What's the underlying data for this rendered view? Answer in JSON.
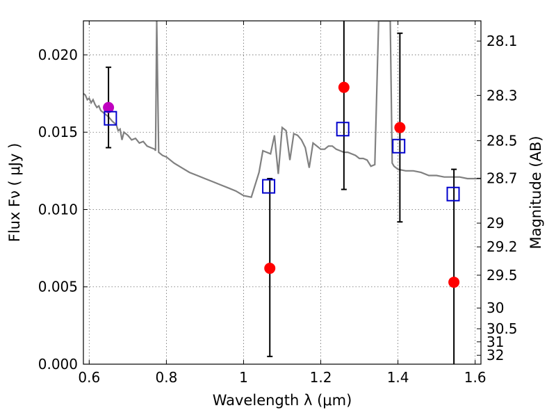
{
  "chart_data": {
    "type": "scatter",
    "title": "",
    "xlabel": "Wavelength  λ (μm)",
    "ylabel": "Flux  Fν  ( μJy )",
    "ylabel_right": "Magnitude (AB)",
    "xlim": [
      0.585,
      1.615
    ],
    "ylim": [
      0.0,
      0.0222
    ],
    "grid": true,
    "x_ticks": [
      0.6,
      0.8,
      1.0,
      1.2,
      1.4,
      1.6
    ],
    "x_tick_labels": [
      "0.6",
      "0.8",
      "1",
      "1.2",
      "1.4",
      "1.6"
    ],
    "y_ticks": [
      0.0,
      0.005,
      0.01,
      0.015,
      0.02
    ],
    "y_tick_labels": [
      "0.000",
      "0.005",
      "0.010",
      "0.015",
      "0.020"
    ],
    "right_axis_mag_ticks": [
      28.1,
      28.3,
      28.5,
      28.7,
      29,
      29.2,
      29.5,
      30,
      30.5,
      31,
      32
    ],
    "right_axis_tick_labels": [
      "28.1",
      "28.3",
      "28.5",
      "28.7",
      "29",
      "29.2",
      "29.5",
      "30",
      "30.5",
      "31",
      "32"
    ],
    "colors": {
      "spectrum": "#808080",
      "observed": "#ff0000",
      "observed_overlap": "#bf00bf",
      "model": "#0000cc",
      "errorbar": "#000000"
    },
    "series": [
      {
        "name": "model spectrum",
        "kind": "line",
        "x": [
          0.585,
          0.59,
          0.595,
          0.6,
          0.605,
          0.61,
          0.615,
          0.62,
          0.625,
          0.63,
          0.64,
          0.65,
          0.66,
          0.67,
          0.675,
          0.68,
          0.685,
          0.69,
          0.7,
          0.71,
          0.72,
          0.73,
          0.74,
          0.75,
          0.76,
          0.77,
          0.772,
          0.775,
          0.78,
          0.79,
          0.8,
          0.82,
          0.84,
          0.86,
          0.88,
          0.9,
          0.92,
          0.94,
          0.96,
          0.98,
          1.0,
          1.02,
          1.04,
          1.05,
          1.06,
          1.07,
          1.08,
          1.09,
          1.1,
          1.11,
          1.12,
          1.13,
          1.14,
          1.15,
          1.16,
          1.17,
          1.18,
          1.19,
          1.2,
          1.21,
          1.22,
          1.23,
          1.24,
          1.25,
          1.26,
          1.27,
          1.28,
          1.29,
          1.3,
          1.31,
          1.32,
          1.33,
          1.34,
          1.35,
          1.36,
          1.365,
          1.37,
          1.375,
          1.38,
          1.385,
          1.39,
          1.395,
          1.4,
          1.42,
          1.44,
          1.46,
          1.48,
          1.5,
          1.52,
          1.54,
          1.56,
          1.58,
          1.6,
          1.615
        ],
        "y": [
          0.0175,
          0.0174,
          0.0171,
          0.0172,
          0.0169,
          0.0171,
          0.0168,
          0.0166,
          0.0167,
          0.0164,
          0.0162,
          0.016,
          0.0157,
          0.0155,
          0.0151,
          0.0152,
          0.0145,
          0.015,
          0.0148,
          0.0145,
          0.0146,
          0.0143,
          0.0144,
          0.0141,
          0.014,
          0.0139,
          0.0138,
          0.0222,
          0.0137,
          0.0135,
          0.0134,
          0.013,
          0.0127,
          0.0124,
          0.0122,
          0.012,
          0.0118,
          0.0116,
          0.0114,
          0.0112,
          0.0109,
          0.0108,
          0.0124,
          0.0138,
          0.0137,
          0.0136,
          0.0148,
          0.0123,
          0.0153,
          0.0151,
          0.0132,
          0.0149,
          0.0148,
          0.0145,
          0.014,
          0.0127,
          0.0143,
          0.0141,
          0.0139,
          0.0139,
          0.0141,
          0.0141,
          0.0139,
          0.0138,
          0.0137,
          0.0137,
          0.0136,
          0.0135,
          0.0133,
          0.0133,
          0.0132,
          0.0128,
          0.0129,
          0.0222,
          0.0222,
          0.0222,
          0.0222,
          0.0222,
          0.0222,
          0.013,
          0.0128,
          0.0127,
          0.0126,
          0.0125,
          0.0125,
          0.0124,
          0.0122,
          0.0122,
          0.0121,
          0.0121,
          0.0121,
          0.012,
          0.012,
          0.012
        ]
      },
      {
        "name": "observed flux",
        "kind": "points",
        "x": [
          0.65,
          1.068,
          1.26,
          1.405,
          1.545
        ],
        "y": [
          0.0166,
          0.0062,
          0.0179,
          0.0153,
          0.0053
        ],
        "yerr_low": [
          0.014,
          0.0005,
          0.0113,
          0.0092,
          0.0
        ],
        "yerr_high": [
          0.0192,
          0.012,
          0.0222,
          0.0214,
          0.0126
        ]
      },
      {
        "name": "model photometry",
        "kind": "open-squares",
        "x": [
          0.655,
          1.065,
          1.257,
          1.402,
          1.543
        ],
        "y": [
          0.0159,
          0.0115,
          0.0152,
          0.0141,
          0.011
        ]
      }
    ]
  }
}
